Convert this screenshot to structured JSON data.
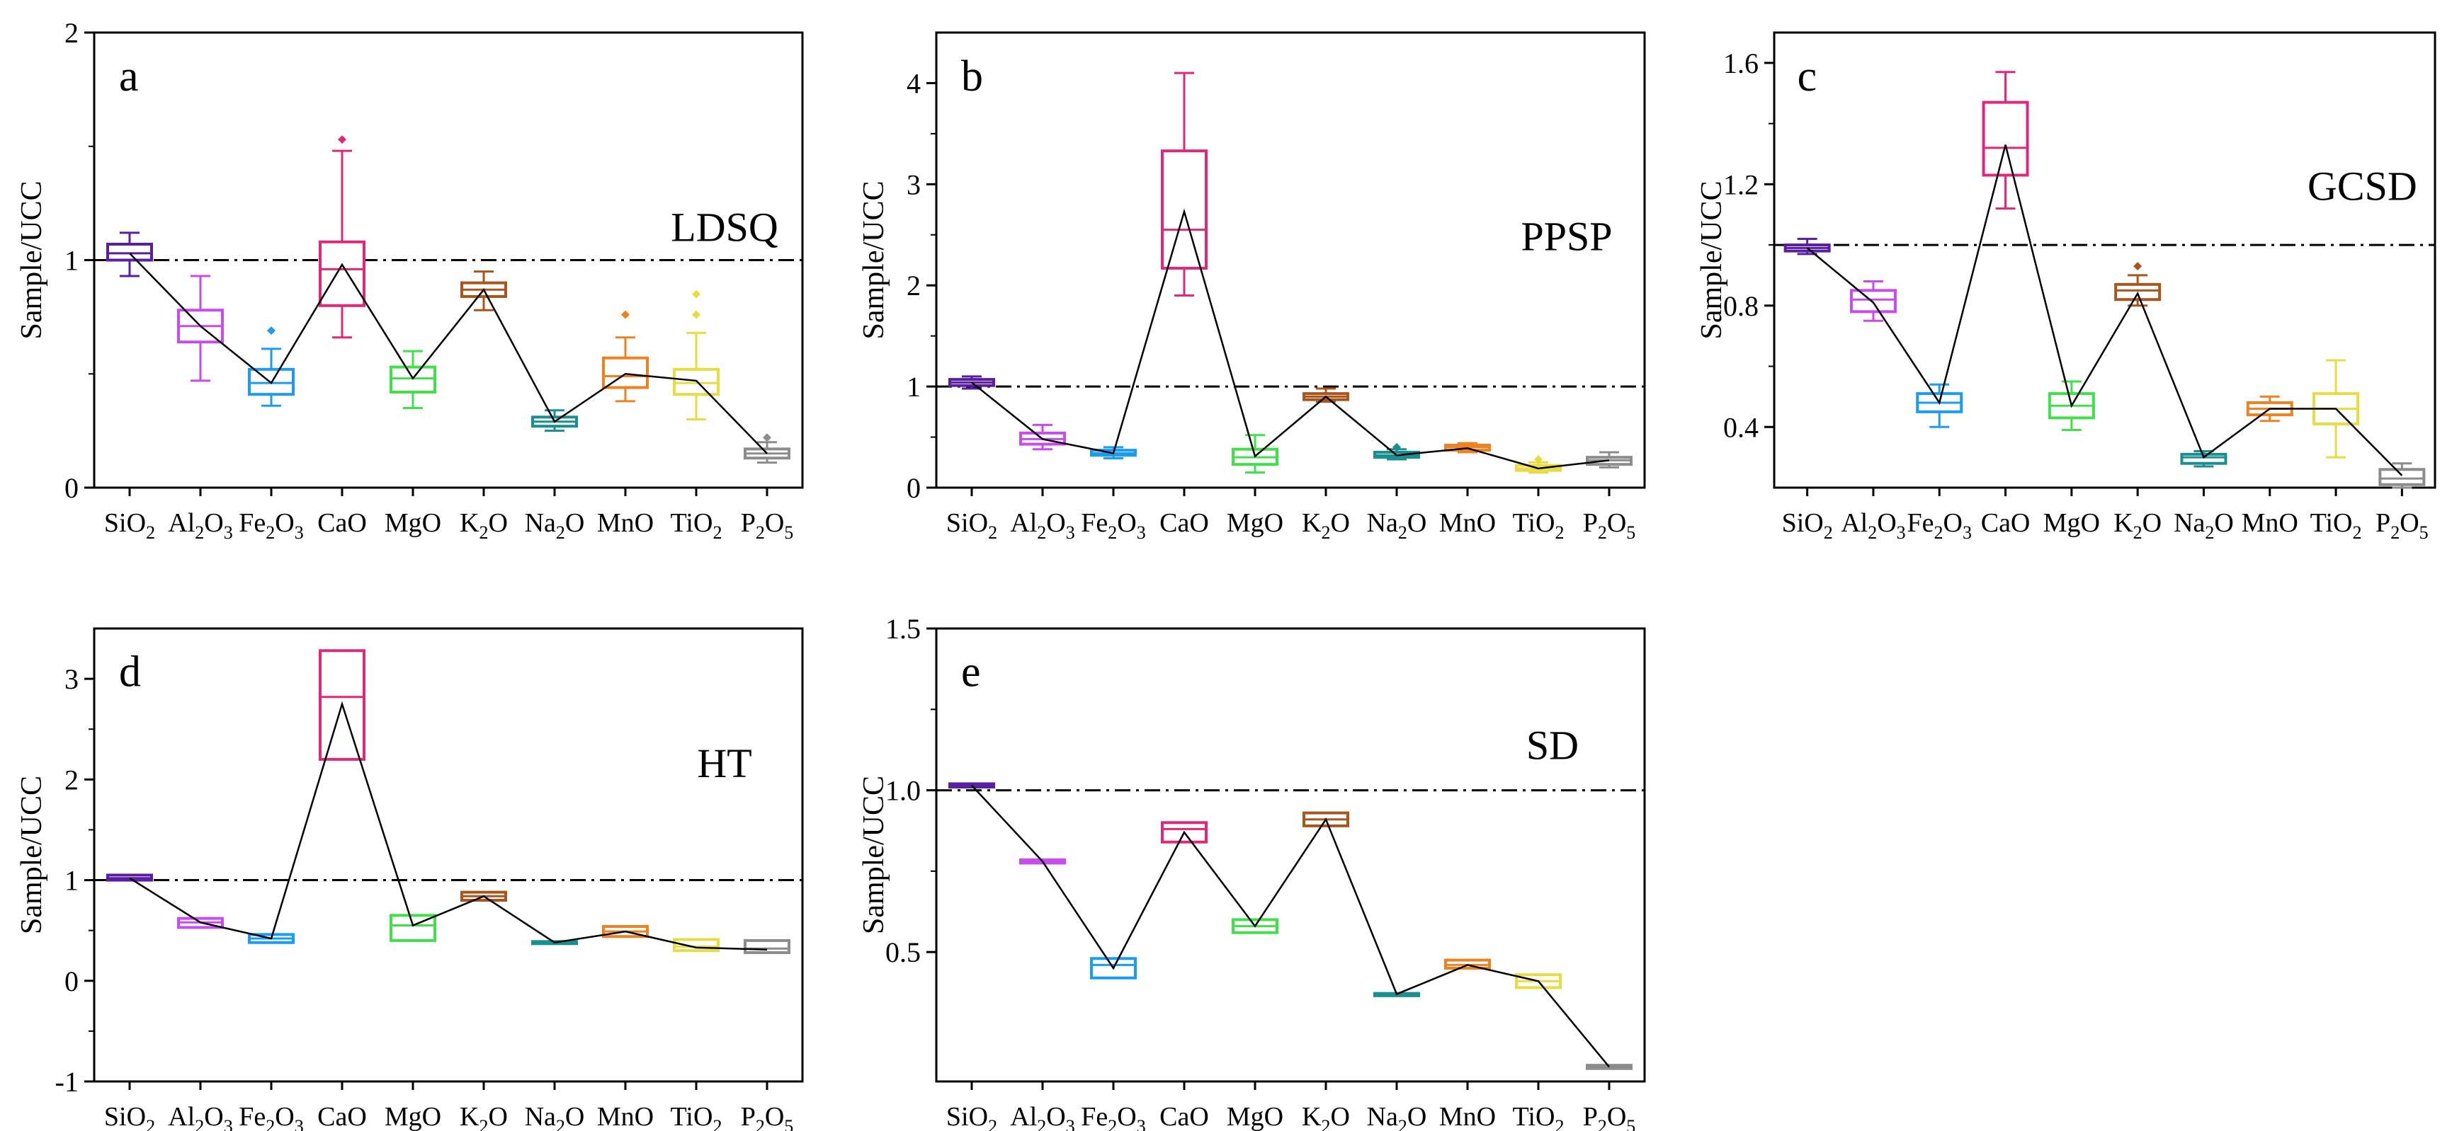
{
  "reference_line": 1,
  "categories": [
    {
      "base": "SiO",
      "sub": "2",
      "tail": ""
    },
    {
      "base": "Al",
      "sub": "2",
      "tail": "O",
      "sub2": "3"
    },
    {
      "base": "Fe",
      "sub": "2",
      "tail": "O",
      "sub2": "3"
    },
    {
      "base": "CaO",
      "sub": "",
      "tail": ""
    },
    {
      "base": "MgO",
      "sub": "",
      "tail": ""
    },
    {
      "base": "K",
      "sub": "2",
      "tail": "O"
    },
    {
      "base": "Na",
      "sub": "2",
      "tail": "O"
    },
    {
      "base": "MnO",
      "sub": "",
      "tail": ""
    },
    {
      "base": "TiO",
      "sub": "2",
      "tail": ""
    },
    {
      "base": "P",
      "sub": "2",
      "tail": "O",
      "sub2": "5"
    }
  ],
  "category_names": [
    "SiO2",
    "Al2O3",
    "Fe2O3",
    "CaO",
    "MgO",
    "K2O",
    "Na2O",
    "MnO",
    "TiO2",
    "P2O5"
  ],
  "colors": [
    "#5a1fa0",
    "#c84bf0",
    "#1a9cf0",
    "#e0287a",
    "#3fe04a",
    "#a8561c",
    "#1a8f90",
    "#ee8220",
    "#e8dc40",
    "#8c8c8c"
  ],
  "chart_data": [
    {
      "type": "box",
      "panel_letter": "a",
      "site_label": "LDSQ",
      "ylabel": "Sample/UCC",
      "ylim": [
        0,
        2
      ],
      "yticks": [
        0,
        1,
        2
      ],
      "ytick_labels": [
        "0",
        "1",
        "2"
      ],
      "boxes": [
        {
          "category": "SiO2",
          "whisker_low": 0.93,
          "q1": 1.0,
          "median": 1.03,
          "q3": 1.07,
          "whisker_high": 1.12,
          "mean": 1.03,
          "outliers": []
        },
        {
          "category": "Al2O3",
          "whisker_low": 0.47,
          "q1": 0.64,
          "median": 0.71,
          "q3": 0.78,
          "whisker_high": 0.93,
          "mean": 0.71,
          "outliers": []
        },
        {
          "category": "Fe2O3",
          "whisker_low": 0.36,
          "q1": 0.41,
          "median": 0.46,
          "q3": 0.52,
          "whisker_high": 0.61,
          "mean": 0.46,
          "outliers": [
            0.69
          ]
        },
        {
          "category": "CaO",
          "whisker_low": 0.66,
          "q1": 0.8,
          "median": 0.96,
          "q3": 1.08,
          "whisker_high": 1.48,
          "mean": 0.98,
          "outliers": [
            1.53
          ]
        },
        {
          "category": "MgO",
          "whisker_low": 0.35,
          "q1": 0.42,
          "median": 0.48,
          "q3": 0.53,
          "whisker_high": 0.6,
          "mean": 0.48,
          "outliers": []
        },
        {
          "category": "K2O",
          "whisker_low": 0.78,
          "q1": 0.84,
          "median": 0.87,
          "q3": 0.9,
          "whisker_high": 0.95,
          "mean": 0.87,
          "outliers": []
        },
        {
          "category": "Na2O",
          "whisker_low": 0.25,
          "q1": 0.27,
          "median": 0.29,
          "q3": 0.31,
          "whisker_high": 0.34,
          "mean": 0.29,
          "outliers": []
        },
        {
          "category": "MnO",
          "whisker_low": 0.38,
          "q1": 0.44,
          "median": 0.49,
          "q3": 0.57,
          "whisker_high": 0.66,
          "mean": 0.5,
          "outliers": [
            0.76
          ]
        },
        {
          "category": "TiO2",
          "whisker_low": 0.3,
          "q1": 0.41,
          "median": 0.46,
          "q3": 0.52,
          "whisker_high": 0.68,
          "mean": 0.47,
          "outliers": [
            0.76,
            0.85
          ]
        },
        {
          "category": "P2O5",
          "whisker_low": 0.11,
          "q1": 0.13,
          "median": 0.15,
          "q3": 0.17,
          "whisker_high": 0.2,
          "mean": 0.15,
          "outliers": [
            0.22
          ]
        }
      ]
    },
    {
      "type": "box",
      "panel_letter": "b",
      "site_label": "PPSP",
      "ylabel": "Sample/UCC",
      "ylim": [
        0,
        4.5
      ],
      "yticks": [
        0,
        1,
        2,
        3,
        4
      ],
      "ytick_labels": [
        "0",
        "1",
        "2",
        "3",
        "4"
      ],
      "boxes": [
        {
          "category": "SiO2",
          "whisker_low": 0.98,
          "q1": 1.01,
          "median": 1.04,
          "q3": 1.07,
          "whisker_high": 1.1,
          "mean": 1.04,
          "outliers": []
        },
        {
          "category": "Al2O3",
          "whisker_low": 0.38,
          "q1": 0.43,
          "median": 0.48,
          "q3": 0.54,
          "whisker_high": 0.62,
          "mean": 0.48,
          "outliers": []
        },
        {
          "category": "Fe2O3",
          "whisker_low": 0.29,
          "q1": 0.32,
          "median": 0.34,
          "q3": 0.37,
          "whisker_high": 0.4,
          "mean": 0.34,
          "outliers": []
        },
        {
          "category": "CaO",
          "whisker_low": 1.9,
          "q1": 2.17,
          "median": 2.55,
          "q3": 3.33,
          "whisker_high": 4.1,
          "mean": 2.73,
          "outliers": []
        },
        {
          "category": "MgO",
          "whisker_low": 0.15,
          "q1": 0.23,
          "median": 0.3,
          "q3": 0.38,
          "whisker_high": 0.52,
          "mean": 0.31,
          "outliers": []
        },
        {
          "category": "K2O",
          "whisker_low": 0.85,
          "q1": 0.87,
          "median": 0.9,
          "q3": 0.93,
          "whisker_high": 0.98,
          "mean": 0.9,
          "outliers": []
        },
        {
          "category": "Na2O",
          "whisker_low": 0.28,
          "q1": 0.3,
          "median": 0.32,
          "q3": 0.35,
          "whisker_high": 0.38,
          "mean": 0.32,
          "outliers": [
            0.4
          ]
        },
        {
          "category": "MnO",
          "whisker_low": 0.35,
          "q1": 0.37,
          "median": 0.4,
          "q3": 0.42,
          "whisker_high": 0.44,
          "mean": 0.39,
          "outliers": []
        },
        {
          "category": "TiO2",
          "whisker_low": 0.15,
          "q1": 0.17,
          "median": 0.19,
          "q3": 0.22,
          "whisker_high": 0.25,
          "mean": 0.19,
          "outliers": [
            0.28
          ]
        },
        {
          "category": "P2O5",
          "whisker_low": 0.2,
          "q1": 0.23,
          "median": 0.27,
          "q3": 0.3,
          "whisker_high": 0.35,
          "mean": 0.27,
          "outliers": []
        }
      ]
    },
    {
      "type": "box",
      "panel_letter": "c",
      "site_label": "GCSD",
      "ylabel": "Sample/UCC",
      "ylim": [
        0.2,
        1.7
      ],
      "yticks": [
        0.4,
        0.8,
        1.2,
        1.6
      ],
      "ytick_labels": [
        "0.4",
        "0.8",
        "1.2",
        "1.6"
      ],
      "boxes": [
        {
          "category": "SiO2",
          "whisker_low": 0.97,
          "q1": 0.98,
          "median": 0.99,
          "q3": 1.0,
          "whisker_high": 1.02,
          "mean": 0.99,
          "outliers": []
        },
        {
          "category": "Al2O3",
          "whisker_low": 0.75,
          "q1": 0.78,
          "median": 0.82,
          "q3": 0.85,
          "whisker_high": 0.88,
          "mean": 0.81,
          "outliers": []
        },
        {
          "category": "Fe2O3",
          "whisker_low": 0.4,
          "q1": 0.45,
          "median": 0.48,
          "q3": 0.51,
          "whisker_high": 0.54,
          "mean": 0.48,
          "outliers": []
        },
        {
          "category": "CaO",
          "whisker_low": 1.12,
          "q1": 1.23,
          "median": 1.32,
          "q3": 1.47,
          "whisker_high": 1.57,
          "mean": 1.33,
          "outliers": []
        },
        {
          "category": "MgO",
          "whisker_low": 0.39,
          "q1": 0.43,
          "median": 0.47,
          "q3": 0.51,
          "whisker_high": 0.55,
          "mean": 0.47,
          "outliers": []
        },
        {
          "category": "K2O",
          "whisker_low": 0.8,
          "q1": 0.82,
          "median": 0.85,
          "q3": 0.87,
          "whisker_high": 0.9,
          "mean": 0.84,
          "outliers": [
            0.93
          ]
        },
        {
          "category": "Na2O",
          "whisker_low": 0.27,
          "q1": 0.28,
          "median": 0.3,
          "q3": 0.31,
          "whisker_high": 0.32,
          "mean": 0.3,
          "outliers": []
        },
        {
          "category": "MnO",
          "whisker_low": 0.42,
          "q1": 0.44,
          "median": 0.46,
          "q3": 0.48,
          "whisker_high": 0.5,
          "mean": 0.46,
          "outliers": []
        },
        {
          "category": "TiO2",
          "whisker_low": 0.3,
          "q1": 0.41,
          "median": 0.46,
          "q3": 0.51,
          "whisker_high": 0.62,
          "mean": 0.46,
          "outliers": []
        },
        {
          "category": "P2O5",
          "whisker_low": 0.2,
          "q1": 0.21,
          "median": 0.23,
          "q3": 0.26,
          "whisker_high": 0.28,
          "mean": 0.24,
          "outliers": []
        }
      ]
    },
    {
      "type": "box",
      "panel_letter": "d",
      "site_label": "HT",
      "ylabel": "Sample/UCC",
      "ylim": [
        -1,
        3.5
      ],
      "yticks": [
        -1,
        0,
        1,
        2,
        3
      ],
      "ytick_labels": [
        "-1",
        "0",
        "1",
        "2",
        "3"
      ],
      "boxes": [
        {
          "category": "SiO2",
          "whisker_low": 1.0,
          "q1": 1.0,
          "median": 1.02,
          "q3": 1.05,
          "whisker_high": 1.05,
          "mean": 1.02,
          "outliers": []
        },
        {
          "category": "Al2O3",
          "whisker_low": 0.53,
          "q1": 0.53,
          "median": 0.58,
          "q3": 0.62,
          "whisker_high": 0.62,
          "mean": 0.58,
          "outliers": []
        },
        {
          "category": "Fe2O3",
          "whisker_low": 0.38,
          "q1": 0.38,
          "median": 0.42,
          "q3": 0.46,
          "whisker_high": 0.46,
          "mean": 0.42,
          "outliers": []
        },
        {
          "category": "CaO",
          "whisker_low": 2.2,
          "q1": 2.2,
          "median": 2.82,
          "q3": 3.28,
          "whisker_high": 3.28,
          "mean": 2.75,
          "outliers": []
        },
        {
          "category": "MgO",
          "whisker_low": 0.4,
          "q1": 0.4,
          "median": 0.55,
          "q3": 0.65,
          "whisker_high": 0.65,
          "mean": 0.55,
          "outliers": []
        },
        {
          "category": "K2O",
          "whisker_low": 0.8,
          "q1": 0.8,
          "median": 0.84,
          "q3": 0.88,
          "whisker_high": 0.88,
          "mean": 0.84,
          "outliers": []
        },
        {
          "category": "Na2O",
          "whisker_low": 0.37,
          "q1": 0.37,
          "median": 0.38,
          "q3": 0.39,
          "whisker_high": 0.39,
          "mean": 0.38,
          "outliers": []
        },
        {
          "category": "MnO",
          "whisker_low": 0.44,
          "q1": 0.44,
          "median": 0.49,
          "q3": 0.54,
          "whisker_high": 0.54,
          "mean": 0.49,
          "outliers": []
        },
        {
          "category": "TiO2",
          "whisker_low": 0.3,
          "q1": 0.3,
          "median": 0.34,
          "q3": 0.41,
          "whisker_high": 0.41,
          "mean": 0.33,
          "outliers": []
        },
        {
          "category": "P2O5",
          "whisker_low": 0.28,
          "q1": 0.28,
          "median": 0.32,
          "q3": 0.4,
          "whisker_high": 0.4,
          "mean": 0.31,
          "outliers": []
        }
      ]
    },
    {
      "type": "box",
      "panel_letter": "e",
      "site_label": "SD",
      "ylabel": "Sample/UCC",
      "ylim": [
        0.1,
        1.5
      ],
      "yticks": [
        0.5,
        1.0,
        1.5
      ],
      "ytick_labels": [
        "0.5",
        "1.0",
        "1.5"
      ],
      "boxes": [
        {
          "category": "SiO2",
          "whisker_low": 1.01,
          "q1": 1.01,
          "median": 1.015,
          "q3": 1.02,
          "whisker_high": 1.02,
          "mean": 1.015,
          "outliers": []
        },
        {
          "category": "Al2O3",
          "whisker_low": 0.775,
          "q1": 0.775,
          "median": 0.78,
          "q3": 0.785,
          "whisker_high": 0.785,
          "mean": 0.78,
          "outliers": []
        },
        {
          "category": "Fe2O3",
          "whisker_low": 0.42,
          "q1": 0.42,
          "median": 0.46,
          "q3": 0.48,
          "whisker_high": 0.48,
          "mean": 0.45,
          "outliers": []
        },
        {
          "category": "CaO",
          "whisker_low": 0.84,
          "q1": 0.84,
          "median": 0.88,
          "q3": 0.9,
          "whisker_high": 0.9,
          "mean": 0.87,
          "outliers": []
        },
        {
          "category": "MgO",
          "whisker_low": 0.56,
          "q1": 0.56,
          "median": 0.58,
          "q3": 0.6,
          "whisker_high": 0.6,
          "mean": 0.58,
          "outliers": []
        },
        {
          "category": "K2O",
          "whisker_low": 0.89,
          "q1": 0.89,
          "median": 0.91,
          "q3": 0.93,
          "whisker_high": 0.93,
          "mean": 0.91,
          "outliers": []
        },
        {
          "category": "Na2O",
          "whisker_low": 0.365,
          "q1": 0.365,
          "median": 0.37,
          "q3": 0.372,
          "whisker_high": 0.372,
          "mean": 0.37,
          "outliers": []
        },
        {
          "category": "MnO",
          "whisker_low": 0.45,
          "q1": 0.45,
          "median": 0.46,
          "q3": 0.475,
          "whisker_high": 0.475,
          "mean": 0.46,
          "outliers": []
        },
        {
          "category": "TiO2",
          "whisker_low": 0.39,
          "q1": 0.39,
          "median": 0.41,
          "q3": 0.43,
          "whisker_high": 0.43,
          "mean": 0.41,
          "outliers": []
        },
        {
          "category": "P2O5",
          "whisker_low": 0.14,
          "q1": 0.14,
          "median": 0.145,
          "q3": 0.15,
          "whisker_high": 0.15,
          "mean": 0.145,
          "outliers": []
        }
      ]
    }
  ]
}
